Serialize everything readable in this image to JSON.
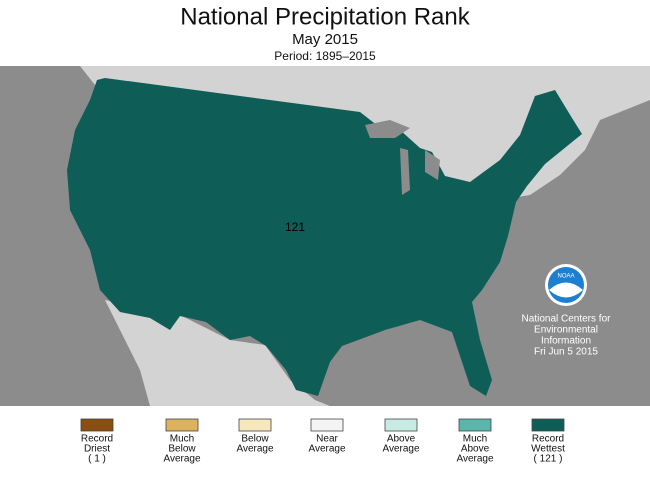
{
  "title": "National Precipitation Rank",
  "subtitle": "May 2015",
  "period": "Period: 1895–2015",
  "rank": 121,
  "rank_color": "#0e5e57",
  "logo_text": "NOAA",
  "credit": [
    "National Centers for",
    "Environmental",
    "Information",
    "Fri Jun  5 2015"
  ],
  "legend": [
    {
      "color": "#8a4e10",
      "lines": [
        "Record",
        "Driest",
        "( 1 )"
      ]
    },
    {
      "color": "#dcb25e",
      "lines": [
        "Much",
        "Below",
        "Average"
      ]
    },
    {
      "color": "#f6e7bd",
      "lines": [
        "Below",
        "Average"
      ]
    },
    {
      "color": "#f4f4f4",
      "lines": [
        "Near",
        "Average"
      ]
    },
    {
      "color": "#c7ebe4",
      "lines": [
        "Above",
        "Average"
      ]
    },
    {
      "color": "#5ab6aa",
      "lines": [
        "Much",
        "Above",
        "Average"
      ]
    },
    {
      "color": "#0e5e57",
      "lines": [
        "Record",
        "Wettest",
        "( 121 )"
      ]
    }
  ]
}
